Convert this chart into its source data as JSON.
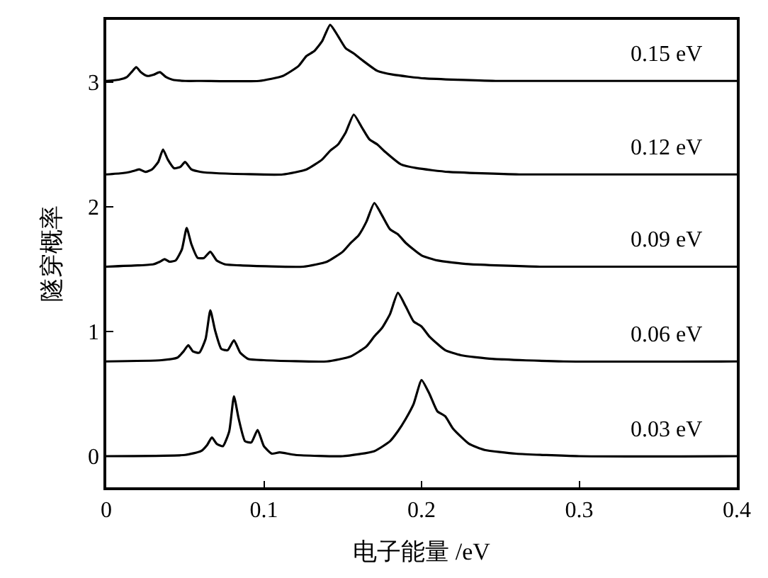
{
  "chart_data": {
    "type": "line",
    "xlabel": "电子能量 /eV",
    "ylabel": "隧穿概率",
    "xlim": [
      0,
      0.4
    ],
    "xticks": [
      0,
      0.1,
      0.2,
      0.3,
      0.4
    ],
    "ylim": [
      -0.25,
      3.5
    ],
    "yticks": [
      0,
      1,
      2,
      3
    ],
    "legend": false,
    "marker": "none",
    "line_style": "solid",
    "series": [
      {
        "name": "0.03 eV",
        "color": "#000000",
        "x": [
          0,
          0.05,
          0.06,
          0.064,
          0.067,
          0.07,
          0.074,
          0.078,
          0.081,
          0.084,
          0.088,
          0.092,
          0.096,
          0.1,
          0.105,
          0.11,
          0.12,
          0.15,
          0.17,
          0.18,
          0.185,
          0.19,
          0.195,
          0.2,
          0.205,
          0.21,
          0.215,
          0.22,
          0.23,
          0.24,
          0.26,
          0.3,
          0.4
        ],
        "values": [
          0,
          0.01,
          0.04,
          0.09,
          0.15,
          0.1,
          0.08,
          0.2,
          0.48,
          0.3,
          0.12,
          0.11,
          0.21,
          0.08,
          0.02,
          0.03,
          0.01,
          0.0,
          0.04,
          0.12,
          0.2,
          0.3,
          0.42,
          0.61,
          0.5,
          0.36,
          0.32,
          0.22,
          0.1,
          0.05,
          0.02,
          0.0,
          0.0
        ]
      },
      {
        "name": "0.06 eV",
        "color": "#000000",
        "x": [
          0,
          0.035,
          0.045,
          0.049,
          0.052,
          0.055,
          0.059,
          0.063,
          0.066,
          0.069,
          0.073,
          0.077,
          0.081,
          0.085,
          0.09,
          0.1,
          0.14,
          0.155,
          0.165,
          0.17,
          0.175,
          0.18,
          0.185,
          0.19,
          0.195,
          0.2,
          0.205,
          0.215,
          0.225,
          0.245,
          0.29,
          0.4
        ],
        "values": [
          0.76,
          0.77,
          0.79,
          0.84,
          0.89,
          0.84,
          0.83,
          0.94,
          1.17,
          1.01,
          0.86,
          0.85,
          0.93,
          0.83,
          0.78,
          0.77,
          0.76,
          0.8,
          0.88,
          0.96,
          1.03,
          1.14,
          1.31,
          1.2,
          1.08,
          1.04,
          0.96,
          0.85,
          0.81,
          0.78,
          0.76,
          0.76
        ]
      },
      {
        "name": "0.09 eV",
        "color": "#000000",
        "x": [
          0,
          0.02,
          0.03,
          0.034,
          0.037,
          0.04,
          0.044,
          0.048,
          0.051,
          0.054,
          0.058,
          0.062,
          0.066,
          0.07,
          0.075,
          0.085,
          0.125,
          0.14,
          0.15,
          0.155,
          0.16,
          0.165,
          0.17,
          0.175,
          0.18,
          0.185,
          0.19,
          0.2,
          0.21,
          0.23,
          0.275,
          0.4
        ],
        "values": [
          1.52,
          1.53,
          1.54,
          1.56,
          1.58,
          1.56,
          1.57,
          1.66,
          1.83,
          1.7,
          1.59,
          1.59,
          1.64,
          1.57,
          1.54,
          1.53,
          1.52,
          1.56,
          1.64,
          1.71,
          1.77,
          1.88,
          2.03,
          1.93,
          1.82,
          1.78,
          1.71,
          1.61,
          1.57,
          1.54,
          1.52,
          1.52
        ]
      },
      {
        "name": "0.12 eV",
        "color": "#000000",
        "x": [
          0,
          0.01,
          0.015,
          0.018,
          0.021,
          0.025,
          0.029,
          0.033,
          0.036,
          0.039,
          0.043,
          0.047,
          0.05,
          0.054,
          0.06,
          0.07,
          0.112,
          0.127,
          0.137,
          0.142,
          0.147,
          0.152,
          0.157,
          0.162,
          0.167,
          0.172,
          0.177,
          0.187,
          0.197,
          0.217,
          0.262,
          0.4
        ],
        "values": [
          2.26,
          2.27,
          2.28,
          2.29,
          2.3,
          2.28,
          2.3,
          2.36,
          2.46,
          2.38,
          2.31,
          2.32,
          2.36,
          2.3,
          2.28,
          2.27,
          2.26,
          2.3,
          2.38,
          2.45,
          2.5,
          2.6,
          2.74,
          2.64,
          2.54,
          2.5,
          2.44,
          2.34,
          2.31,
          2.28,
          2.26,
          2.26
        ]
      },
      {
        "name": "0.15 eV",
        "color": "#000000",
        "x": [
          0,
          0.008,
          0.013,
          0.016,
          0.019,
          0.022,
          0.026,
          0.03,
          0.034,
          0.038,
          0.042,
          0.05,
          0.06,
          0.097,
          0.112,
          0.122,
          0.127,
          0.132,
          0.137,
          0.142,
          0.147,
          0.152,
          0.157,
          0.162,
          0.172,
          0.182,
          0.202,
          0.247,
          0.4
        ],
        "values": [
          3.01,
          3.02,
          3.04,
          3.08,
          3.12,
          3.08,
          3.05,
          3.06,
          3.08,
          3.04,
          3.02,
          3.01,
          3.01,
          3.01,
          3.05,
          3.13,
          3.21,
          3.25,
          3.33,
          3.46,
          3.37,
          3.27,
          3.23,
          3.18,
          3.09,
          3.06,
          3.03,
          3.01,
          3.01
        ]
      }
    ]
  }
}
